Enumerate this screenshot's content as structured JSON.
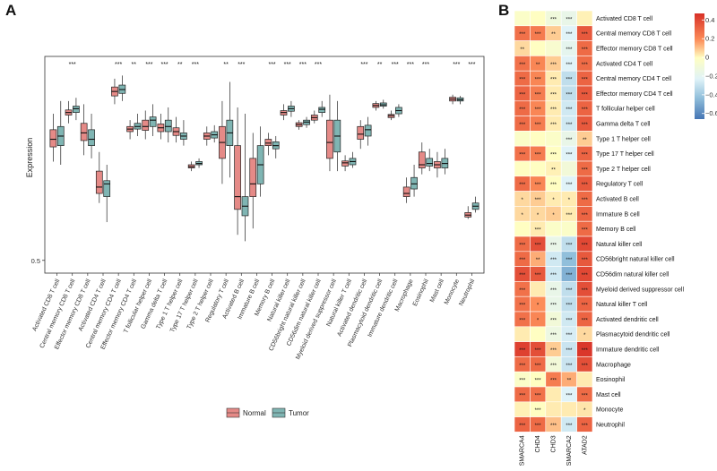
{
  "chart_data": [
    {
      "type": "box",
      "panel_label": "A",
      "ylabel": "Expression",
      "yticks": [
        0.5
      ],
      "ylim": [
        0.48,
        0.82
      ],
      "legend": {
        "placement": "bottom",
        "entries": [
          "Normal",
          "Tumor"
        ]
      },
      "colors": {
        "Normal": "#e58a87",
        "Tumor": "#7fb5b3"
      },
      "categories": [
        "Activated CD8 T cell",
        "Central memory CD8 T cell",
        "Effector memory CD8 T cell",
        "Activated CD4 T cell",
        "Central memory CD4 T cell",
        "Effector memory CD4 T cell",
        "T follicular helper cell",
        "Gamma delta T cell",
        "Type 1 T helper cell",
        "Type 17 T helper cell",
        "Type 2 T helper cell",
        "Regulatory T cell",
        "Activated B cell",
        "Immature B cell",
        "Memory B cell",
        "Natural killer cell",
        "CD56bright natural killer cell",
        "CD56dim natural killer cell",
        "Myeloid derived suppressor cell",
        "Natural killer T cell",
        "Activated dendritic cell",
        "Plasmacytoid dendritic cell",
        "Immature dendritic cell",
        "Macrophage",
        "Eosinophil",
        "Mast cell",
        "Monocyte",
        "Neutrophil"
      ],
      "significance": [
        "",
        "***",
        "",
        "",
        "***",
        "**",
        "***",
        "***",
        "**",
        "***",
        "",
        "**",
        "***",
        "",
        "***",
        "***",
        "***",
        "***",
        "",
        "",
        "***",
        "**",
        "***",
        "***",
        "***",
        "",
        "***",
        "***"
      ],
      "series": [
        {
          "name": "Normal",
          "stats": [
            [
              0.655,
              0.678,
              0.69,
              0.705,
              0.73
            ],
            [
              0.715,
              0.728,
              0.732,
              0.736,
              0.75
            ],
            [
              0.665,
              0.688,
              0.7,
              0.715,
              0.745
            ],
            [
              0.59,
              0.605,
              0.615,
              0.64,
              0.67
            ],
            [
              0.745,
              0.758,
              0.765,
              0.772,
              0.785
            ],
            [
              0.69,
              0.702,
              0.706,
              0.71,
              0.72
            ],
            [
              0.69,
              0.704,
              0.71,
              0.72,
              0.735
            ],
            [
              0.69,
              0.702,
              0.708,
              0.714,
              0.73
            ],
            [
              0.685,
              0.696,
              0.702,
              0.708,
              0.725
            ],
            [
              0.64,
              0.645,
              0.647,
              0.65,
              0.655
            ],
            [
              0.68,
              0.69,
              0.695,
              0.7,
              0.71
            ],
            [
              0.62,
              0.66,
              0.685,
              0.71,
              0.75
            ],
            [
              0.54,
              0.58,
              0.6,
              0.68,
              0.74
            ],
            [
              0.55,
              0.6,
              0.62,
              0.66,
              0.7
            ],
            [
              0.665,
              0.68,
              0.684,
              0.69,
              0.7
            ],
            [
              0.72,
              0.728,
              0.732,
              0.735,
              0.745
            ],
            [
              0.705,
              0.71,
              0.713,
              0.716,
              0.72
            ],
            [
              0.715,
              0.72,
              0.724,
              0.728,
              0.735
            ],
            [
              0.64,
              0.66,
              0.685,
              0.72,
              0.76
            ],
            [
              0.64,
              0.648,
              0.653,
              0.656,
              0.665
            ],
            [
              0.675,
              0.69,
              0.698,
              0.71,
              0.72
            ],
            [
              0.735,
              0.74,
              0.743,
              0.746,
              0.75
            ],
            [
              0.72,
              0.724,
              0.727,
              0.729,
              0.735
            ],
            [
              0.59,
              0.6,
              0.605,
              0.615,
              0.63
            ],
            [
              0.635,
              0.645,
              0.65,
              0.67,
              0.685
            ],
            [
              0.63,
              0.645,
              0.65,
              0.655,
              0.67
            ],
            [
              0.745,
              0.75,
              0.753,
              0.756,
              0.76
            ],
            [
              0.565,
              0.568,
              0.571,
              0.575,
              0.585
            ]
          ]
        },
        {
          "name": "Tumor",
          "stats": [
            [
              0.65,
              0.68,
              0.695,
              0.71,
              0.75
            ],
            [
              0.72,
              0.732,
              0.738,
              0.742,
              0.755
            ],
            [
              0.66,
              0.68,
              0.69,
              0.705,
              0.73
            ],
            [
              0.56,
              0.6,
              0.62,
              0.625,
              0.65
            ],
            [
              0.75,
              0.762,
              0.768,
              0.775,
              0.79
            ],
            [
              0.695,
              0.706,
              0.71,
              0.715,
              0.73
            ],
            [
              0.695,
              0.71,
              0.72,
              0.725,
              0.745
            ],
            [
              0.685,
              0.702,
              0.71,
              0.72,
              0.74
            ],
            [
              0.68,
              0.69,
              0.695,
              0.7,
              0.72
            ],
            [
              0.645,
              0.65,
              0.652,
              0.655,
              0.66
            ],
            [
              0.685,
              0.692,
              0.697,
              0.702,
              0.712
            ],
            [
              0.63,
              0.68,
              0.7,
              0.72,
              0.78
            ],
            [
              0.53,
              0.57,
              0.585,
              0.6,
              0.73
            ],
            [
              0.6,
              0.62,
              0.65,
              0.68,
              0.71
            ],
            [
              0.66,
              0.675,
              0.68,
              0.686,
              0.695
            ],
            [
              0.725,
              0.734,
              0.738,
              0.742,
              0.75
            ],
            [
              0.708,
              0.713,
              0.717,
              0.72,
              0.725
            ],
            [
              0.725,
              0.732,
              0.737,
              0.74,
              0.75
            ],
            [
              0.64,
              0.67,
              0.695,
              0.72,
              0.75
            ],
            [
              0.645,
              0.65,
              0.655,
              0.66,
              0.67
            ],
            [
              0.68,
              0.695,
              0.705,
              0.712,
              0.725
            ],
            [
              0.738,
              0.742,
              0.744,
              0.747,
              0.752
            ],
            [
              0.725,
              0.73,
              0.735,
              0.74,
              0.745
            ],
            [
              0.6,
              0.612,
              0.62,
              0.63,
              0.65
            ],
            [
              0.64,
              0.648,
              0.652,
              0.66,
              0.675
            ],
            [
              0.635,
              0.645,
              0.652,
              0.66,
              0.675
            ],
            [
              0.745,
              0.75,
              0.752,
              0.755,
              0.758
            ],
            [
              0.575,
              0.58,
              0.585,
              0.59,
              0.6
            ]
          ]
        }
      ]
    },
    {
      "type": "heatmap",
      "panel_label": "B",
      "columns": [
        "SMARCA4",
        "CHD4",
        "CHD3",
        "SMARCA2",
        "ATAD2"
      ],
      "rows": [
        "Activated CD8 T cell",
        "Central memory CD8 T cell",
        "Effector memory CD8 T cell",
        "Activated CD4 T cell",
        "Central memory CD4 T cell",
        "Effector memory CD4 T cell",
        "T follicular helper cell",
        "Gamma delta T cell",
        "Type 1 T helper cell",
        "Type 17 T helper cell",
        "Type 2 T helper cell",
        "Regulatory T cell",
        "Activated B cell",
        "Immature  B cell",
        "Memory B cell",
        "Natural killer cell",
        "CD56bright natural killer cell",
        "CD56dim natural killer cell",
        "Myeloid derived suppressor cell",
        "Natural killer T cell",
        "Activated dendritic cell",
        "Plasmacytoid dendritic cell",
        "Immature dendritic cell",
        "Macrophage",
        "Eosinophil",
        "Mast cell",
        "Monocyte",
        "Neutrophil"
      ],
      "values": [
        [
          0.0,
          0.02,
          -0.06,
          -0.1,
          0.04
        ],
        [
          0.28,
          0.25,
          0.1,
          -0.15,
          0.35
        ],
        [
          0.08,
          0.02,
          -0.02,
          -0.12,
          0.3
        ],
        [
          0.28,
          0.22,
          0.1,
          -0.15,
          0.3
        ],
        [
          0.3,
          0.22,
          0.05,
          -0.25,
          0.32
        ],
        [
          0.32,
          0.25,
          0.05,
          -0.25,
          0.35
        ],
        [
          0.3,
          0.22,
          0.05,
          -0.2,
          0.32
        ],
        [
          0.3,
          0.25,
          0.05,
          -0.2,
          0.35
        ],
        [
          0.0,
          0.02,
          0.0,
          -0.1,
          0.1
        ],
        [
          0.28,
          0.25,
          0.02,
          -0.15,
          0.32
        ],
        [
          0.02,
          0.02,
          0.04,
          -0.05,
          0.3
        ],
        [
          0.3,
          0.22,
          0.02,
          -0.15,
          0.35
        ],
        [
          0.08,
          0.1,
          0.05,
          0.05,
          0.3
        ],
        [
          0.08,
          0.08,
          0.1,
          0.05,
          0.32
        ],
        [
          0.02,
          0.05,
          0.0,
          0.0,
          0.3
        ],
        [
          0.3,
          0.38,
          -0.1,
          -0.25,
          0.4
        ],
        [
          0.3,
          0.15,
          -0.2,
          -0.4,
          0.35
        ],
        [
          0.38,
          0.35,
          -0.2,
          -0.45,
          0.4
        ],
        [
          0.28,
          0.05,
          -0.1,
          -0.25,
          0.38
        ],
        [
          0.28,
          0.2,
          -0.1,
          -0.25,
          0.32
        ],
        [
          0.28,
          0.22,
          -0.05,
          -0.2,
          0.32
        ],
        [
          0.05,
          0.02,
          -0.08,
          -0.18,
          0.08
        ],
        [
          0.42,
          0.38,
          0.1,
          -0.22,
          0.45
        ],
        [
          0.3,
          0.3,
          -0.05,
          -0.22,
          0.38
        ],
        [
          0.0,
          0.02,
          0.25,
          0.15,
          0.05
        ],
        [
          0.3,
          0.28,
          0.05,
          -0.15,
          0.3
        ],
        [
          0.04,
          0.02,
          0.05,
          0.05,
          0.06
        ],
        [
          0.32,
          0.3,
          0.12,
          -0.2,
          0.32
        ]
      ],
      "stars": [
        [
          "",
          "",
          "***",
          "***",
          ""
        ],
        [
          "***",
          "***",
          "**",
          "***",
          "***"
        ],
        [
          "**",
          "",
          "",
          "***",
          "***"
        ],
        [
          "***",
          "**",
          "***",
          "***",
          "***"
        ],
        [
          "***",
          "***",
          "***",
          "***",
          "***"
        ],
        [
          "***",
          "***",
          "***",
          "***",
          "***"
        ],
        [
          "***",
          "***",
          "***",
          "***",
          "***"
        ],
        [
          "***",
          "***",
          "***",
          "***",
          "***"
        ],
        [
          "",
          "",
          "",
          "***",
          "**"
        ],
        [
          "***",
          "***",
          "***",
          "***",
          "***"
        ],
        [
          "",
          "",
          "**",
          "",
          "***"
        ],
        [
          "***",
          "***",
          "***",
          "***",
          "***"
        ],
        [
          "*",
          "***",
          "*",
          "*",
          "***"
        ],
        [
          "*",
          "*",
          "*",
          "***",
          "***"
        ],
        [
          "",
          "***",
          "",
          "",
          "***"
        ],
        [
          "***",
          "***",
          "***",
          "***",
          "***"
        ],
        [
          "***",
          "**",
          "***",
          "***",
          "***"
        ],
        [
          "***",
          "***",
          "***",
          "***",
          "***"
        ],
        [
          "***",
          "",
          "***",
          "***",
          "***"
        ],
        [
          "***",
          "*",
          "***",
          "***",
          "***"
        ],
        [
          "***",
          "*",
          "***",
          "***",
          "***"
        ],
        [
          "",
          "",
          "***",
          "***",
          "*"
        ],
        [
          "***",
          "***",
          "***",
          "***",
          "***"
        ],
        [
          "***",
          "***",
          "***",
          "***",
          "***"
        ],
        [
          "***",
          "***",
          "***",
          "**",
          ""
        ],
        [
          "***",
          "***",
          "",
          "***",
          "***"
        ],
        [
          "",
          "***",
          "",
          "",
          "*"
        ],
        [
          "***",
          "***",
          "***",
          "***",
          "***"
        ]
      ],
      "colorbar": {
        "ticks": [
          0.4,
          0.2,
          0.0,
          -0.2,
          -0.4,
          -0.6
        ],
        "labels": [
          "0.4",
          "0.2",
          "0",
          "−0.2",
          "−0.4",
          "−0.6"
        ],
        "min": -0.66,
        "max": 0.47
      },
      "colors": {
        "high": "#d73027",
        "mid": "#fffec2",
        "low": "#4575b4"
      }
    }
  ]
}
